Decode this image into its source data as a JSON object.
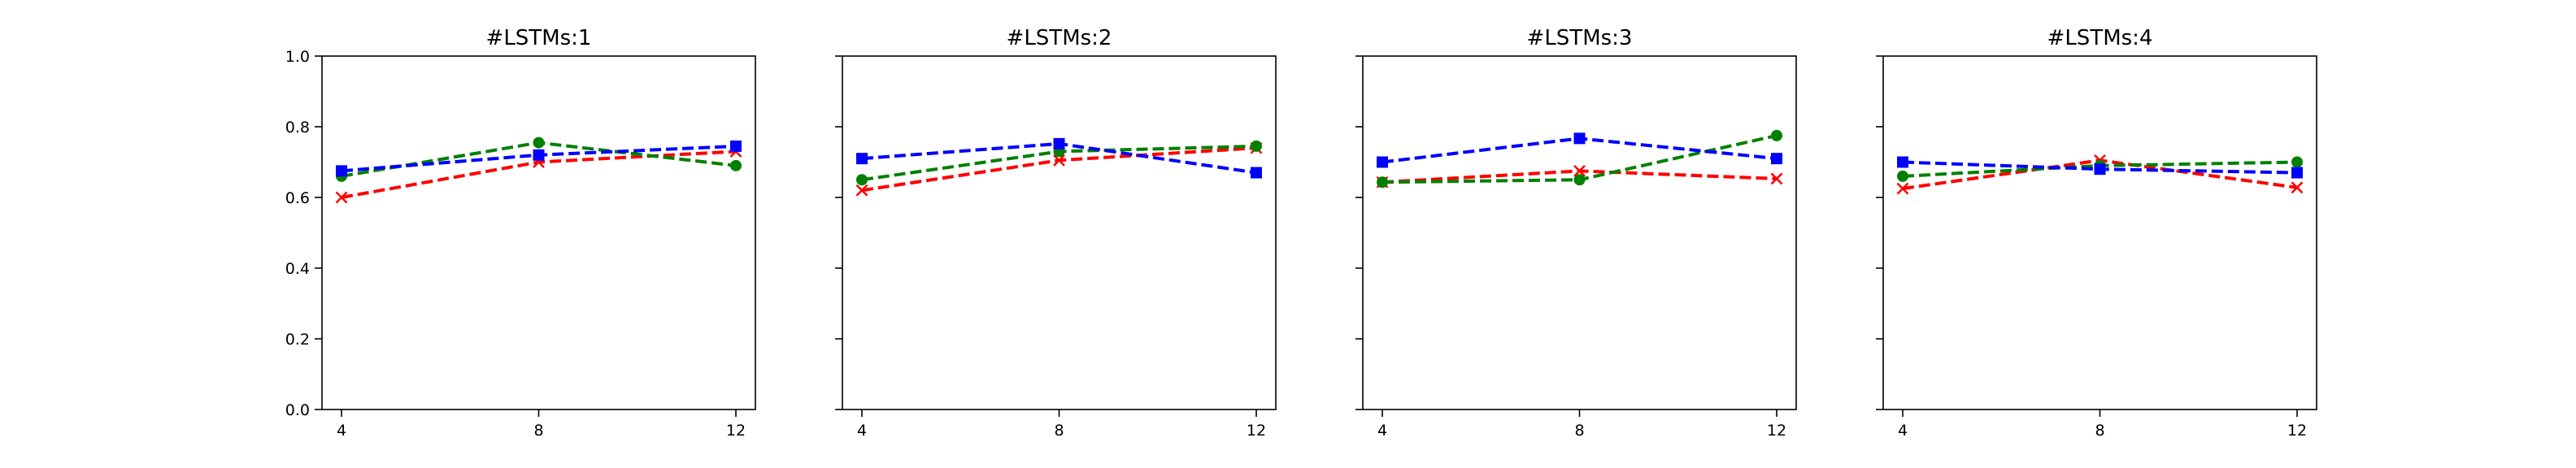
{
  "chart_data": [
    {
      "type": "line",
      "title": "#LSTMs:1",
      "x": [
        4,
        8,
        12
      ],
      "xticks": [
        "4",
        "8",
        "12"
      ],
      "ylim": [
        0.0,
        1.0
      ],
      "yticks": [
        "0.0",
        "0.2",
        "0.4",
        "0.6",
        "0.8",
        "1.0"
      ],
      "show_yticklabels": true,
      "series": [
        {
          "color": "#ff0000",
          "marker": "x",
          "values": [
            0.6,
            0.7,
            0.73
          ]
        },
        {
          "color": "#008000",
          "marker": "circle",
          "values": [
            0.66,
            0.755,
            0.69
          ]
        },
        {
          "color": "#0000ff",
          "marker": "square",
          "values": [
            0.675,
            0.72,
            0.745
          ]
        }
      ]
    },
    {
      "type": "line",
      "title": "#LSTMs:2",
      "x": [
        4,
        8,
        12
      ],
      "xticks": [
        "4",
        "8",
        "12"
      ],
      "ylim": [
        0.0,
        1.0
      ],
      "yticks": [
        "0.0",
        "0.2",
        "0.4",
        "0.6",
        "0.8",
        "1.0"
      ],
      "show_yticklabels": false,
      "series": [
        {
          "color": "#ff0000",
          "marker": "x",
          "values": [
            0.62,
            0.705,
            0.74
          ]
        },
        {
          "color": "#008000",
          "marker": "circle",
          "values": [
            0.65,
            0.73,
            0.745
          ]
        },
        {
          "color": "#0000ff",
          "marker": "square",
          "values": [
            0.71,
            0.752,
            0.67
          ]
        }
      ]
    },
    {
      "type": "line",
      "title": "#LSTMs:3",
      "x": [
        4,
        8,
        12
      ],
      "xticks": [
        "4",
        "8",
        "12"
      ],
      "ylim": [
        0.0,
        1.0
      ],
      "yticks": [
        "0.0",
        "0.2",
        "0.4",
        "0.6",
        "0.8",
        "1.0"
      ],
      "show_yticklabels": false,
      "series": [
        {
          "color": "#ff0000",
          "marker": "x",
          "values": [
            0.643,
            0.675,
            0.653
          ]
        },
        {
          "color": "#008000",
          "marker": "circle",
          "values": [
            0.643,
            0.65,
            0.775
          ]
        },
        {
          "color": "#0000ff",
          "marker": "square",
          "values": [
            0.7,
            0.767,
            0.71
          ]
        }
      ]
    },
    {
      "type": "line",
      "title": "#LSTMs:4",
      "x": [
        4,
        8,
        12
      ],
      "xticks": [
        "4",
        "8",
        "12"
      ],
      "ylim": [
        0.0,
        1.0
      ],
      "yticks": [
        "0.0",
        "0.2",
        "0.4",
        "0.6",
        "0.8",
        "1.0"
      ],
      "show_yticklabels": false,
      "series": [
        {
          "color": "#ff0000",
          "marker": "x",
          "values": [
            0.625,
            0.705,
            0.628
          ]
        },
        {
          "color": "#008000",
          "marker": "circle",
          "values": [
            0.66,
            0.69,
            0.7
          ]
        },
        {
          "color": "#0000ff",
          "marker": "square",
          "values": [
            0.7,
            0.68,
            0.67
          ]
        }
      ]
    }
  ]
}
